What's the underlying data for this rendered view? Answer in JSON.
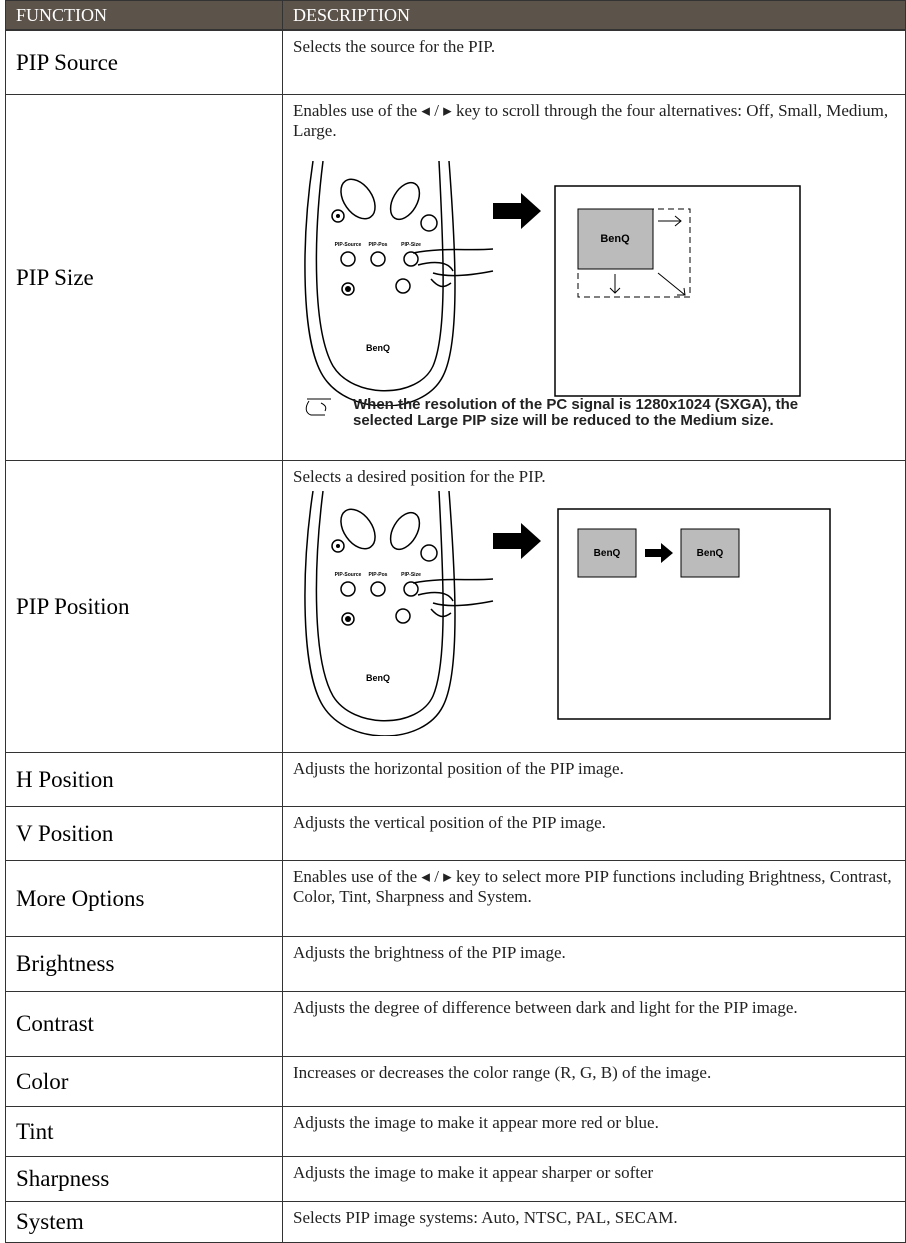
{
  "table": {
    "header": [
      "FUNCTION",
      "DESCRIPTION"
    ],
    "rows": [
      {
        "function": "PIP Source",
        "description": "Selects the source for the PIP."
      },
      {
        "function": "PIP Size",
        "description": "Enables use of the ◂ / ▸ key to scroll through the four alternatives: Off, Small, Medium, Large.",
        "figure": {
          "buttons": [
            "PIP-Source",
            "PIP-Pos",
            "PIP-Size"
          ],
          "logo": "BenQ"
        },
        "note": "When the resolution of the PC signal is 1280x1024 (SXGA), the selected Large PIP size will be reduced to the Medium size."
      },
      {
        "function": "PIP Position",
        "description": "Selects a desired position for the PIP.",
        "figure": {
          "buttons": [
            "PIP-Source",
            "PIP-Pos",
            "PIP-Size"
          ],
          "logo": "BenQ"
        }
      },
      {
        "function": "H Position",
        "description": "Adjusts the horizontal position of the PIP image."
      },
      {
        "function": "V Position",
        "description": "Adjusts the vertical position of the PIP image."
      },
      {
        "function": "More Options",
        "description": "Enables use of the ◂ / ▸ key to select more PIP functions including Brightness, Contrast, Color, Tint, Sharpness and System."
      },
      {
        "function": "Brightness",
        "description": "Adjusts the brightness of the PIP image."
      },
      {
        "function": "Contrast",
        "description": "Adjusts the degree of difference between dark and light for the PIP image."
      },
      {
        "function": "Color",
        "description": "Increases or decreases the color range (R, G, B) of the image."
      },
      {
        "function": "Tint",
        "description": "Adjusts the image to make it appear more red or blue."
      },
      {
        "function": "Sharpness",
        "description": "Adjusts the image to make it appear sharper or softer"
      },
      {
        "function": "System",
        "description": "Selects PIP image systems: Auto, NTSC, PAL, SECAM."
      }
    ]
  }
}
